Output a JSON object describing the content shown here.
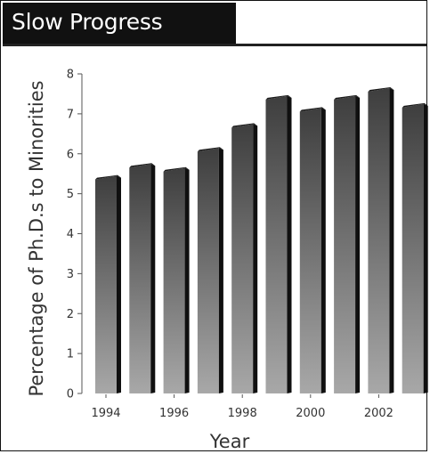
{
  "chart_data": {
    "type": "bar",
    "title": "Slow Progress",
    "xlabel": "Year",
    "ylabel": "Percentage of Ph.D.s to Minorities",
    "x": [
      1994,
      1995,
      1996,
      1997,
      1998,
      1999,
      2000,
      2001,
      2002,
      2003
    ],
    "values": [
      5.4,
      5.7,
      5.6,
      6.1,
      6.7,
      7.4,
      7.1,
      7.4,
      7.6,
      7.2
    ],
    "x_tick_labels": [
      "1994",
      "1996",
      "1998",
      "2000",
      "2002"
    ],
    "y_tick_labels": [
      "0",
      "1",
      "2",
      "3",
      "4",
      "5",
      "6",
      "7",
      "8"
    ],
    "ylim": [
      0,
      8
    ],
    "grid": false,
    "colors": {
      "bar_top": "#3e3e3e",
      "bar_bottom": "#a8a8a8",
      "bar_side": "#101010",
      "axis": "#555555",
      "title_background": "#111111",
      "title_text": "#ffffff"
    }
  }
}
